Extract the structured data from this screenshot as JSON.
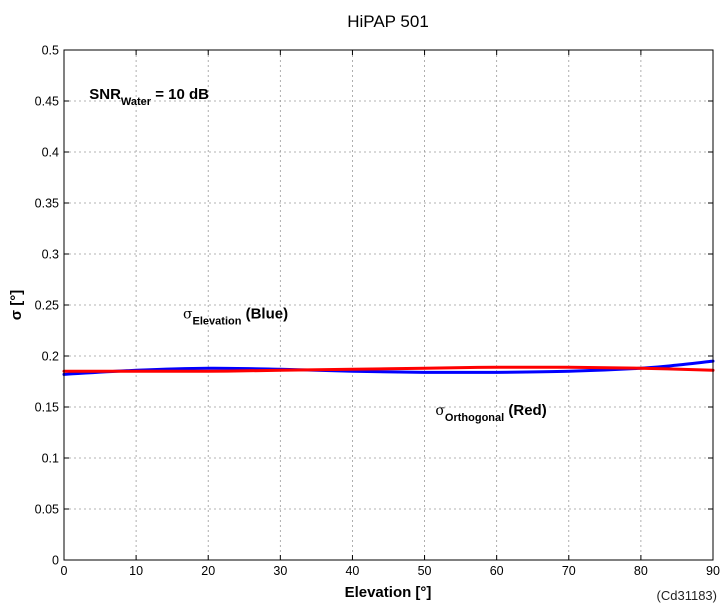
{
  "chart_data": {
    "type": "line",
    "title": "HiPAP 501",
    "xlabel": "Elevation [°]",
    "ylabel": "σ [°]",
    "xlim": [
      0,
      90
    ],
    "ylim": [
      0,
      0.5
    ],
    "xticks": [
      0,
      10,
      20,
      30,
      40,
      50,
      60,
      70,
      80,
      90
    ],
    "yticks": [
      0,
      0.05,
      0.1,
      0.15,
      0.2,
      0.25,
      0.3,
      0.35,
      0.4,
      0.45,
      0.5
    ],
    "xtick_labels": [
      "0",
      "10",
      "20",
      "30",
      "40",
      "50",
      "60",
      "70",
      "80",
      "90"
    ],
    "ytick_labels": [
      "0",
      "0.05",
      "0.1",
      "0.15",
      "0.2",
      "0.25",
      "0.3",
      "0.35",
      "0.4",
      "0.45",
      "0.5"
    ],
    "grid": true,
    "series": [
      {
        "color": "#0000ff",
        "x": [
          0,
          10,
          20,
          30,
          40,
          50,
          60,
          70,
          80,
          85,
          90
        ],
        "y": [
          0.182,
          0.186,
          0.188,
          0.187,
          0.185,
          0.184,
          0.184,
          0.185,
          0.188,
          0.191,
          0.195
        ]
      },
      {
        "color": "#ff0000",
        "x": [
          0,
          10,
          20,
          30,
          40,
          50,
          60,
          70,
          80,
          90
        ],
        "y": [
          0.185,
          0.185,
          0.185,
          0.186,
          0.187,
          0.188,
          0.189,
          0.189,
          0.188,
          0.186
        ]
      }
    ],
    "annotations": {
      "snr": {
        "main": "SNR",
        "sub": "Water",
        "tail": " = 10 dB",
        "x": 3.5,
        "y": 0.452
      },
      "elevation": {
        "sigma": "σ",
        "sub": "Elevation",
        "tail": " (Blue)",
        "x": 16.5,
        "y": 0.237
      },
      "orthogonal": {
        "sigma": "σ",
        "sub": "Orthogonal",
        "tail": " (Red)",
        "x": 51.5,
        "y": 0.142
      }
    },
    "figure_id": "(Cd31183)"
  }
}
